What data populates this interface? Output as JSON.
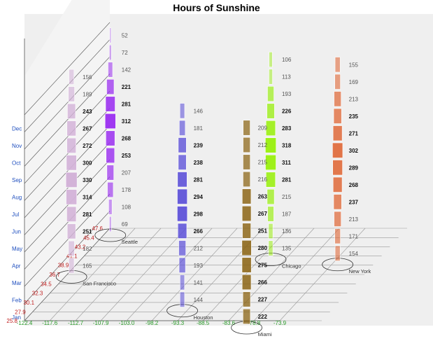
{
  "title": "Hours of Sunshine",
  "chart_data": {
    "type": "bar",
    "title": "Hours of Sunshine",
    "months": [
      "Jan",
      "Feb",
      "Mar",
      "Apr",
      "May",
      "Jun",
      "Jul",
      "Aug",
      "Sep",
      "Oct",
      "Nov",
      "Dec"
    ],
    "latitude_ticks": [
      "25.8",
      "27.9",
      "30.1",
      "32.3",
      "34.5",
      "36.7",
      "38.9",
      "41.1",
      "43.2",
      "45.4",
      "47.6"
    ],
    "longitude_ticks": [
      "-122.4",
      "-117.6",
      "-112.7",
      "-107.9",
      "-103.0",
      "-98.2",
      "-93.3",
      "-88.5",
      "-83.6",
      "-78.8",
      "-73.9"
    ],
    "series": [
      {
        "name": "San Francisco",
        "color": "#d3b3d8",
        "lon": -122.4,
        "lat": 37.8,
        "values": [
          165,
          182,
          251,
          281,
          314,
          330,
          300,
          272,
          267,
          243,
          189,
          156
        ]
      },
      {
        "name": "Seattle",
        "color": "#9b30f0",
        "lon": -122.3,
        "lat": 47.6,
        "values": [
          69,
          108,
          178,
          207,
          253,
          268,
          312,
          281,
          221,
          142,
          72,
          52
        ]
      },
      {
        "name": "Houston",
        "color": "#5b4fd8",
        "lon": -95.4,
        "lat": 29.8,
        "values": [
          144,
          141,
          193,
          212,
          266,
          298,
          294,
          281,
          238,
          239,
          181,
          146
        ]
      },
      {
        "name": "Miami",
        "color": "#8b6414",
        "lon": -80.2,
        "lat": 25.8,
        "values": [
          222,
          227,
          266,
          275,
          280,
          251,
          267,
          263,
          216,
          215,
          212,
          209
        ]
      },
      {
        "name": "Chicago",
        "color": "#9aef10",
        "lon": -87.6,
        "lat": 41.9,
        "values": [
          135,
          136,
          187,
          215,
          281,
          311,
          318,
          283,
          226,
          193,
          113,
          106
        ]
      },
      {
        "name": "New York",
        "color": "#e06a3a",
        "lon": -74.0,
        "lat": 40.7,
        "values": [
          154,
          171,
          213,
          237,
          268,
          289,
          302,
          271,
          235,
          213,
          169,
          155
        ]
      }
    ]
  }
}
